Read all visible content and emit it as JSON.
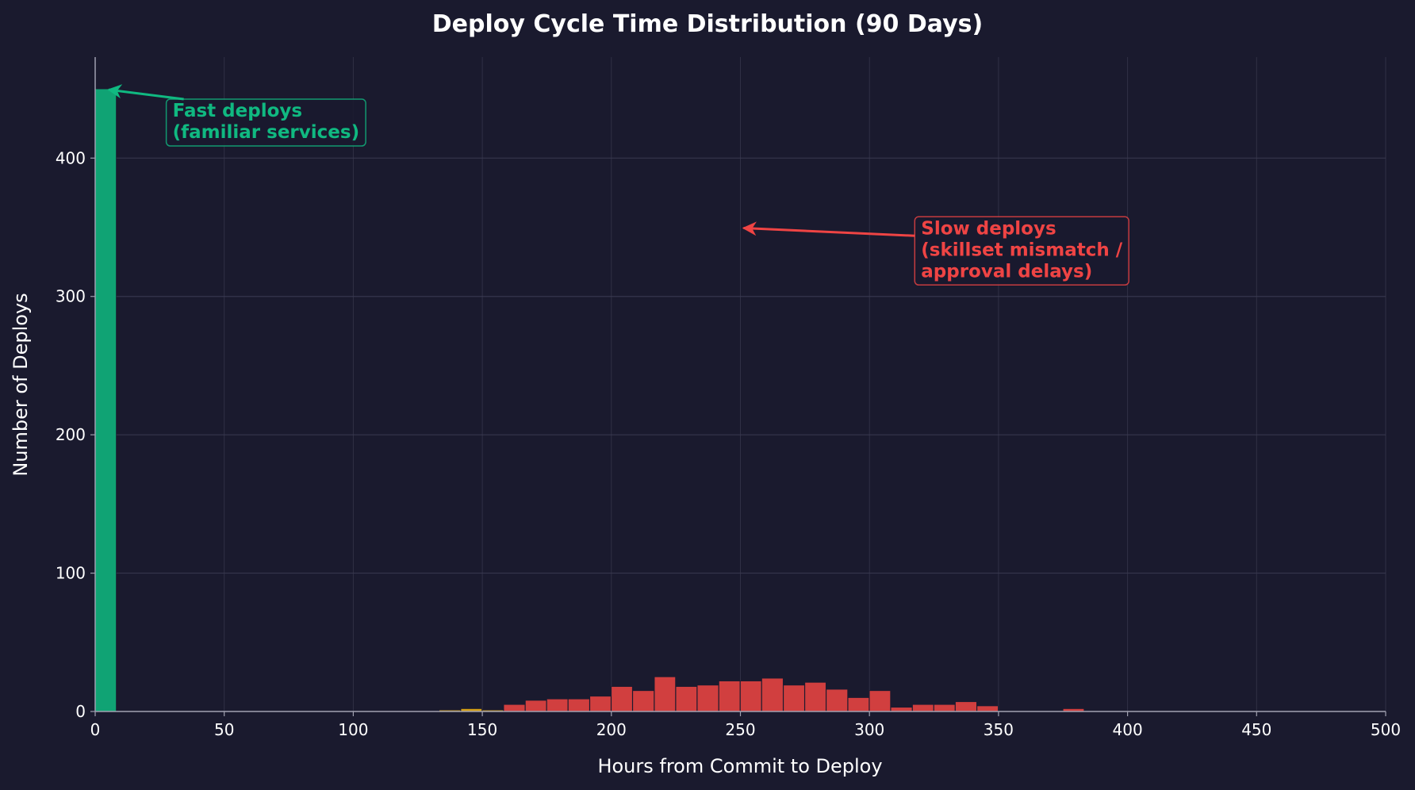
{
  "chart_data": {
    "type": "bar",
    "title": "Deploy Cycle Time Distribution (90 Days)",
    "xlabel": "Hours from Commit to Deploy",
    "ylabel": "Number of Deploys",
    "xlim": [
      0,
      500
    ],
    "ylim": [
      0,
      473
    ],
    "xticks": [
      0,
      50,
      100,
      150,
      200,
      250,
      300,
      350,
      400,
      450,
      500
    ],
    "yticks": [
      0,
      100,
      200,
      300,
      400
    ],
    "grid": true,
    "bin_width": 8.33,
    "series": [
      {
        "color": "#10a374",
        "bins": [
          {
            "x0": 0,
            "x1": 8.33,
            "count": 450
          }
        ]
      },
      {
        "color": "#d4a017",
        "bins": [
          {
            "x0": 108.3,
            "x1": 116.7,
            "count": 0.3
          },
          {
            "x0": 116.7,
            "x1": 125.0,
            "count": 0.3
          },
          {
            "x0": 125.0,
            "x1": 133.3,
            "count": 0.3
          },
          {
            "x0": 133.3,
            "x1": 141.7,
            "count": 1
          },
          {
            "x0": 141.7,
            "x1": 150.0,
            "count": 2
          },
          {
            "x0": 150.0,
            "x1": 158.3,
            "count": 1
          }
        ]
      },
      {
        "color": "#d13f3f",
        "bins": [
          {
            "x0": 158.3,
            "x1": 166.7,
            "count": 5
          },
          {
            "x0": 166.7,
            "x1": 175.0,
            "count": 8
          },
          {
            "x0": 175.0,
            "x1": 183.3,
            "count": 9
          },
          {
            "x0": 183.3,
            "x1": 191.7,
            "count": 9
          },
          {
            "x0": 191.7,
            "x1": 200.0,
            "count": 11
          },
          {
            "x0": 200.0,
            "x1": 208.3,
            "count": 18
          },
          {
            "x0": 208.3,
            "x1": 216.7,
            "count": 15
          },
          {
            "x0": 216.7,
            "x1": 225.0,
            "count": 25
          },
          {
            "x0": 225.0,
            "x1": 233.3,
            "count": 18
          },
          {
            "x0": 233.3,
            "x1": 241.7,
            "count": 19
          },
          {
            "x0": 241.7,
            "x1": 250.0,
            "count": 22
          },
          {
            "x0": 250.0,
            "x1": 258.3,
            "count": 22
          },
          {
            "x0": 258.3,
            "x1": 266.7,
            "count": 24
          },
          {
            "x0": 266.7,
            "x1": 275.0,
            "count": 19
          },
          {
            "x0": 275.0,
            "x1": 283.3,
            "count": 21
          },
          {
            "x0": 283.3,
            "x1": 291.7,
            "count": 16
          },
          {
            "x0": 291.7,
            "x1": 300.0,
            "count": 10
          },
          {
            "x0": 300.0,
            "x1": 308.3,
            "count": 15
          },
          {
            "x0": 308.3,
            "x1": 316.7,
            "count": 3
          },
          {
            "x0": 316.7,
            "x1": 325.0,
            "count": 5
          },
          {
            "x0": 325.0,
            "x1": 333.3,
            "count": 5
          },
          {
            "x0": 333.3,
            "x1": 341.7,
            "count": 7
          },
          {
            "x0": 341.7,
            "x1": 350.0,
            "count": 4
          },
          {
            "x0": 375.0,
            "x1": 383.3,
            "count": 2
          }
        ]
      }
    ],
    "annotations": [
      {
        "lines": [
          "Fast deploys",
          "(familiar services)"
        ],
        "color": "#10b981",
        "arrow_to": [
          4,
          450
        ],
        "text_anchor": [
          30,
          430
        ]
      },
      {
        "lines": [
          "Slow deploys",
          "(skillset mismatch /",
          "approval delays)"
        ],
        "color": "#ef4444",
        "arrow_to": [
          250,
          350
        ],
        "text_anchor": [
          320,
          345
        ]
      }
    ]
  },
  "colors": {
    "background": "#1a1a2e",
    "grid": "#3a3a50",
    "axis": "#a0a0b0",
    "text": "#ffffff"
  }
}
